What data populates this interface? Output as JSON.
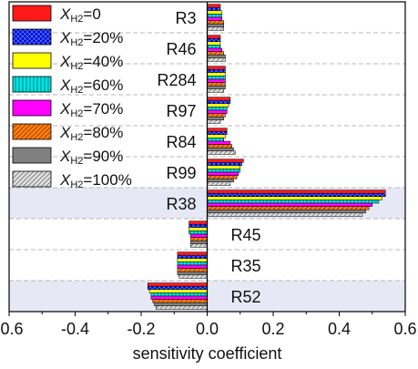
{
  "chart_data": {
    "type": "bar",
    "orientation": "horizontal",
    "xlabel": "sensitivity coefficient",
    "ylabel": "",
    "xlim": [
      -0.6,
      0.6
    ],
    "x_ticks": [
      "-0.6",
      "-0.4",
      "-0.2",
      "0.0",
      "0.2",
      "0.4",
      "0.6"
    ],
    "grid": "dashed horizontal separators",
    "legend_position": "top-left",
    "highlighted_categories": [
      "R38",
      "R52"
    ],
    "highlight_color": "#e6e8f5",
    "categories": [
      "R3",
      "R46",
      "R284",
      "R97",
      "R84",
      "R99",
      "R38",
      "R45",
      "R35",
      "R52"
    ],
    "series": [
      {
        "name": "X_H2=0",
        "legend": {
          "main": "X",
          "sub": "H2",
          "rest": "=0"
        },
        "color": "#ff1a1a",
        "pattern": "solid",
        "values": [
          0.04,
          0.04,
          0.055,
          0.07,
          0.06,
          0.11,
          0.54,
          -0.055,
          -0.09,
          -0.18
        ]
      },
      {
        "name": "X_H2=20%",
        "legend": {
          "main": "X",
          "sub": "H2",
          "rest": "=20%"
        },
        "color": "#0000cc",
        "pattern": "crosshatch",
        "values": [
          0.04,
          0.04,
          0.055,
          0.07,
          0.06,
          0.105,
          0.54,
          -0.055,
          -0.09,
          -0.18
        ]
      },
      {
        "name": "X_H2=40%",
        "legend": {
          "main": "X",
          "sub": "H2",
          "rest": "=40%"
        },
        "color": "#ffff00",
        "pattern": "solid",
        "values": [
          0.045,
          0.04,
          0.055,
          0.065,
          0.055,
          0.1,
          0.53,
          -0.055,
          -0.09,
          -0.175
        ]
      },
      {
        "name": "X_H2=60%",
        "legend": {
          "main": "X",
          "sub": "H2",
          "rest": "=60%"
        },
        "color": "#00e5e5",
        "pattern": "vertical",
        "values": [
          0.045,
          0.04,
          0.055,
          0.06,
          0.05,
          0.1,
          0.52,
          -0.055,
          -0.09,
          -0.17
        ]
      },
      {
        "name": "X_H2=70%",
        "legend": {
          "main": "X",
          "sub": "H2",
          "rest": "=70%"
        },
        "color": "#ff00ff",
        "pattern": "solid",
        "values": [
          0.045,
          0.045,
          0.055,
          0.06,
          0.07,
          0.095,
          0.5,
          -0.05,
          -0.09,
          -0.17
        ]
      },
      {
        "name": "X_H2=80%",
        "legend": {
          "main": "X",
          "sub": "H2",
          "rest": "=80%"
        },
        "color": "#ff7f0e",
        "pattern": "diagonal",
        "values": [
          0.05,
          0.05,
          0.055,
          0.055,
          0.075,
          0.09,
          0.49,
          -0.05,
          -0.09,
          -0.165
        ]
      },
      {
        "name": "X_H2=90%",
        "legend": {
          "main": "X",
          "sub": "H2",
          "rest": "=90%"
        },
        "color": "#808080",
        "pattern": "solid",
        "values": [
          0.05,
          0.055,
          0.055,
          0.05,
          0.08,
          0.08,
          0.48,
          -0.05,
          -0.09,
          -0.16
        ]
      },
      {
        "name": "X_H2=100%",
        "legend": {
          "main": "X",
          "sub": "H2",
          "rest": "=100%"
        },
        "color": "#d0d0d0",
        "pattern": "diagonal-gray",
        "values": [
          0.05,
          0.055,
          0.05,
          0.04,
          0.085,
          0.07,
          0.47,
          -0.05,
          -0.085,
          -0.155
        ]
      }
    ]
  }
}
